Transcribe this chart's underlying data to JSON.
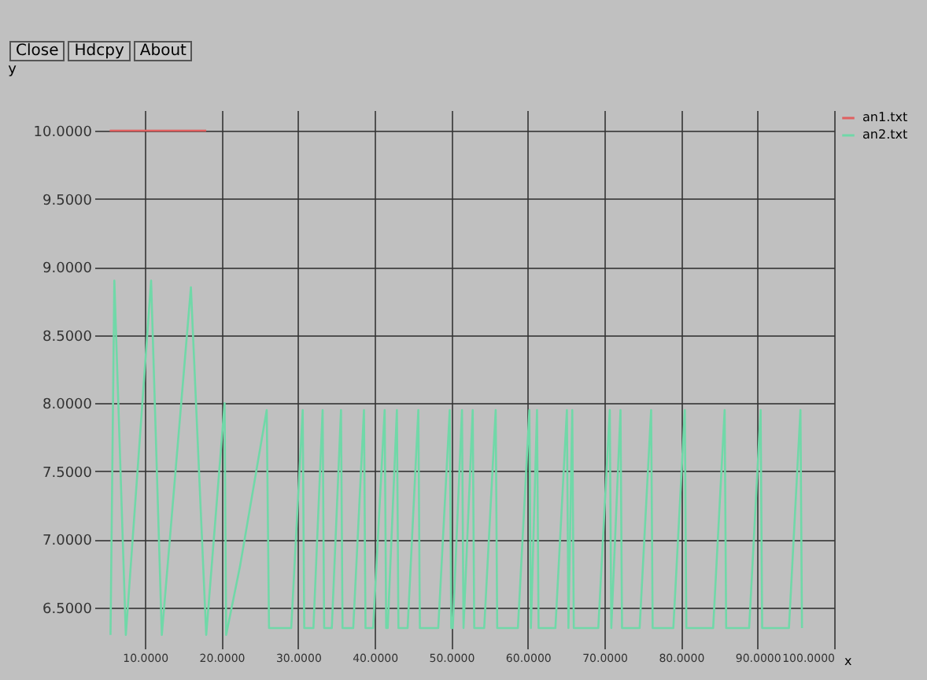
{
  "chart_data": {
    "type": "line",
    "xlabel": "x",
    "ylabel": "y",
    "annotations": [
      "Close",
      "Hdcpy",
      "About"
    ],
    "xlim": [
      3.4,
      100
    ],
    "ylim": [
      6.2,
      10.15
    ],
    "xticks": [
      {
        "value": 10,
        "label": "10.0000"
      },
      {
        "value": 20,
        "label": "20.0000"
      },
      {
        "value": 30,
        "label": "30.0000"
      },
      {
        "value": 40,
        "label": "40.0000"
      },
      {
        "value": 50,
        "label": "50.0000"
      },
      {
        "value": 60,
        "label": "60.0000"
      },
      {
        "value": 70,
        "label": "70.0000"
      },
      {
        "value": 80,
        "label": "80.0000"
      },
      {
        "value": 90,
        "label": "90.0000"
      },
      {
        "value": 100,
        "label": "100.0000"
      }
    ],
    "yticks": [
      {
        "value": 6.5,
        "label": "6.5000"
      },
      {
        "value": 7,
        "label": "7.0000"
      },
      {
        "value": 7.5,
        "label": "7.5000"
      },
      {
        "value": 8,
        "label": "8.0000"
      },
      {
        "value": 8.5,
        "label": "8.5000"
      },
      {
        "value": 9,
        "label": "9.0000"
      },
      {
        "value": 9.5,
        "label": "9.5000"
      },
      {
        "value": 10,
        "label": "10.0000"
      }
    ],
    "grid": true,
    "legend": "top right",
    "marker": "none",
    "line_style": "solid",
    "series": [
      {
        "name": "an1.txt",
        "color": "#e06060",
        "x": [
          5.4,
          18
        ],
        "values": [
          10,
          10
        ]
      },
      {
        "name": "an2.txt",
        "color": "#70d8a8",
        "x": [
          5.5,
          6.0,
          7.5,
          10.8,
          12.2,
          16.0,
          18.0,
          20.4,
          20.6,
          22.4,
          25.9,
          26.2,
          29.1,
          30.6,
          30.8,
          32.0,
          33.2,
          33.4,
          34.4,
          35.6,
          35.8,
          37.2,
          38.6,
          38.8,
          39.8,
          41.3,
          41.5,
          41.7,
          42.9,
          43.1,
          44.3,
          45.7,
          45.9,
          48.3,
          49.8,
          50.0,
          50.2,
          51.4,
          51.6,
          51.6,
          52.8,
          53.0,
          54.3,
          55.8,
          56.0,
          58.7,
          60.2,
          60.4,
          60.4,
          61.2,
          61.4,
          63.6,
          65.1,
          65.3,
          65.3,
          65.8,
          66.0,
          69.2,
          70.7,
          70.9,
          70.9,
          72.1,
          72.3,
          74.6,
          76.1,
          76.3,
          79.0,
          80.5,
          80.7,
          84.2,
          85.7,
          85.9,
          88.9,
          90.4,
          90.6,
          94.1,
          95.6,
          95.8
        ],
        "values": [
          6.3,
          8.9,
          6.3,
          8.9,
          6.3,
          8.85,
          6.3,
          8.0,
          6.3,
          6.8,
          7.95,
          6.35,
          6.35,
          7.95,
          6.35,
          6.35,
          7.95,
          6.35,
          6.35,
          7.95,
          6.35,
          6.35,
          7.95,
          6.35,
          6.35,
          7.95,
          6.35,
          6.35,
          7.95,
          6.35,
          6.35,
          7.95,
          6.35,
          6.35,
          7.95,
          6.35,
          6.35,
          7.95,
          6.35,
          6.35,
          7.95,
          6.35,
          6.35,
          7.95,
          6.35,
          6.35,
          7.95,
          6.35,
          6.35,
          7.95,
          6.35,
          6.35,
          7.95,
          6.35,
          6.35,
          7.95,
          6.35,
          6.35,
          7.95,
          6.35,
          6.35,
          7.95,
          6.35,
          6.35,
          7.95,
          6.35,
          6.35,
          7.95,
          6.35,
          6.35,
          7.95,
          6.35,
          6.35,
          7.95,
          6.35,
          6.35,
          7.95,
          6.35
        ]
      }
    ]
  }
}
